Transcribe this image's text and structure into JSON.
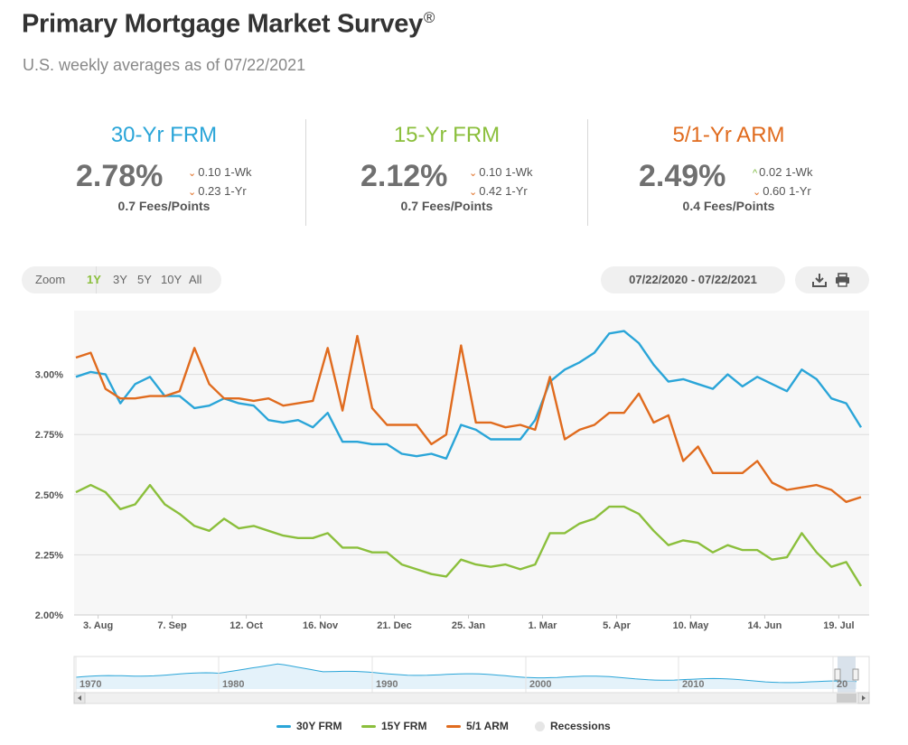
{
  "header": {
    "title": "Primary Mortgage Market Survey",
    "title_mark": "®",
    "subtitle": "U.S. weekly averages as of 07/22/2021"
  },
  "cards": [
    {
      "name": "30-Yr FRM",
      "color": "#2aa5d8",
      "rate": "2.78%",
      "wk_change": "0.10",
      "wk_label": "1-Wk",
      "wk_dir": "down",
      "yr_change": "0.23",
      "yr_label": "1-Yr",
      "yr_dir": "down",
      "fees": "0.7 Fees/Points"
    },
    {
      "name": "15-Yr FRM",
      "color": "#8bbf3c",
      "rate": "2.12%",
      "wk_change": "0.10",
      "wk_label": "1-Wk",
      "wk_dir": "down",
      "yr_change": "0.42",
      "yr_label": "1-Yr",
      "yr_dir": "down",
      "fees": "0.7 Fees/Points"
    },
    {
      "name": "5/1-Yr ARM",
      "color": "#e06b1e",
      "rate": "2.49%",
      "wk_change": "0.02",
      "wk_label": "1-Wk",
      "wk_dir": "up",
      "yr_change": "0.60",
      "yr_label": "1-Yr",
      "yr_dir": "down",
      "fees": "0.4 Fees/Points"
    }
  ],
  "toolbar": {
    "zoom_label": "Zoom",
    "zoom_options": [
      "1Y",
      "3Y",
      "5Y",
      "10Y",
      "All"
    ],
    "zoom_selected": "1Y",
    "date_range": "07/22/2020 - 07/22/2021",
    "download_icon": "download-icon",
    "print_icon": "print-icon"
  },
  "colors": {
    "up": "#7ab83a",
    "down": "#e06b1e"
  },
  "chart_data": {
    "type": "line",
    "ylim": [
      2.0,
      3.25
    ],
    "yticks": [
      2.0,
      2.25,
      2.5,
      2.75,
      3.0
    ],
    "ytick_labels": [
      "2.00%",
      "2.25%",
      "2.50%",
      "2.75%",
      "3.00%"
    ],
    "x_tick_labels": [
      "3. Aug",
      "7. Sep",
      "12. Oct",
      "16. Nov",
      "21. Dec",
      "25. Jan",
      "1. Mar",
      "5. Apr",
      "10. May",
      "14. Jun",
      "19. Jul"
    ],
    "x_tick_week_index": [
      1.5,
      6.5,
      11.5,
      16.5,
      21.5,
      26.5,
      31.5,
      36.5,
      41.5,
      46.5,
      51.5
    ],
    "grid": true,
    "legend_position": "bottom",
    "series": [
      {
        "name": "30Y FRM",
        "color": "#2aa5d8",
        "values": [
          2.99,
          3.01,
          3.0,
          2.88,
          2.96,
          2.99,
          2.91,
          2.91,
          2.86,
          2.87,
          2.9,
          2.88,
          2.87,
          2.81,
          2.8,
          2.81,
          2.78,
          2.84,
          2.72,
          2.72,
          2.71,
          2.71,
          2.67,
          2.66,
          2.67,
          2.65,
          2.79,
          2.77,
          2.73,
          2.73,
          2.73,
          2.81,
          2.97,
          3.02,
          3.05,
          3.09,
          3.17,
          3.18,
          3.13,
          3.04,
          2.97,
          2.98,
          2.96,
          2.94,
          3.0,
          2.95,
          2.99,
          2.96,
          2.93,
          3.02,
          2.98,
          2.9,
          2.88,
          2.78
        ]
      },
      {
        "name": "15Y FRM",
        "color": "#8bbf3c",
        "values": [
          2.51,
          2.54,
          2.51,
          2.44,
          2.46,
          2.54,
          2.46,
          2.42,
          2.37,
          2.35,
          2.4,
          2.36,
          2.37,
          2.35,
          2.33,
          2.32,
          2.32,
          2.34,
          2.28,
          2.28,
          2.26,
          2.26,
          2.21,
          2.19,
          2.17,
          2.16,
          2.23,
          2.21,
          2.2,
          2.21,
          2.19,
          2.21,
          2.34,
          2.34,
          2.38,
          2.4,
          2.45,
          2.45,
          2.42,
          2.35,
          2.29,
          2.31,
          2.3,
          2.26,
          2.29,
          2.27,
          2.27,
          2.23,
          2.24,
          2.34,
          2.26,
          2.2,
          2.22,
          2.12
        ]
      },
      {
        "name": "5/1 ARM",
        "color": "#e06b1e",
        "values": [
          3.07,
          3.09,
          2.94,
          2.9,
          2.9,
          2.91,
          2.91,
          2.93,
          3.11,
          2.96,
          2.9,
          2.9,
          2.89,
          2.9,
          2.87,
          2.88,
          2.89,
          3.11,
          2.85,
          3.16,
          2.86,
          2.79,
          2.79,
          2.79,
          2.71,
          2.75,
          3.12,
          2.8,
          2.8,
          2.78,
          2.79,
          2.77,
          2.99,
          2.73,
          2.77,
          2.79,
          2.84,
          2.84,
          2.92,
          2.8,
          2.83,
          2.64,
          2.7,
          2.59,
          2.59,
          2.59,
          2.64,
          2.55,
          2.52,
          2.53,
          2.54,
          2.52,
          2.47,
          2.49
        ]
      }
    ],
    "navigator": {
      "labels": [
        "1970",
        "1980",
        "1990",
        "2000",
        "2010",
        "20"
      ]
    },
    "legend": [
      "30Y FRM",
      "15Y FRM",
      "5/1 ARM",
      "Recessions"
    ],
    "recession_color": "#e6e6e6"
  }
}
